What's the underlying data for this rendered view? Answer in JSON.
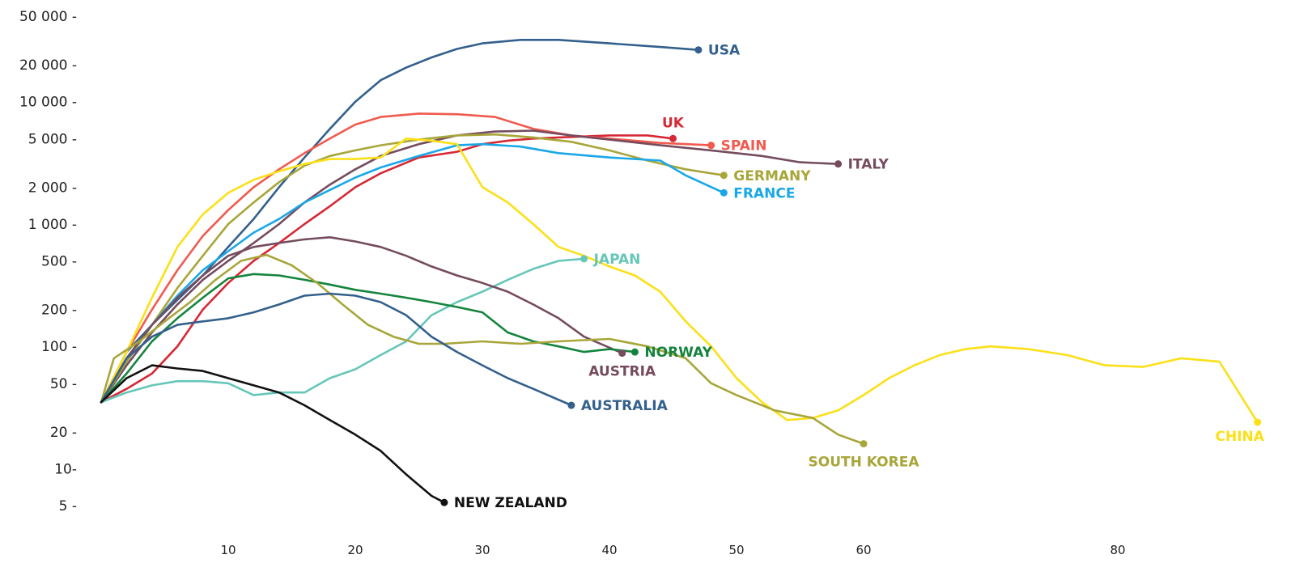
{
  "chart_data": {
    "type": "line",
    "title": "",
    "xlabel": "",
    "ylabel": "",
    "yscale": "log",
    "grid": false,
    "xlim": [
      0,
      91
    ],
    "ylim": [
      3.5,
      60000
    ],
    "yticks": [
      {
        "value": 50000,
        "label": "50 000 -"
      },
      {
        "value": 20000,
        "label": "20 000 -"
      },
      {
        "value": 10000,
        "label": "10 000 -"
      },
      {
        "value": 5000,
        "label": "5 000 -"
      },
      {
        "value": 2000,
        "label": "2 000 -"
      },
      {
        "value": 1000,
        "label": "1 000 -"
      },
      {
        "value": 500,
        "label": "500 -"
      },
      {
        "value": 200,
        "label": "200 -"
      },
      {
        "value": 100,
        "label": "100 -"
      },
      {
        "value": 50,
        "label": "50 -"
      },
      {
        "value": 20,
        "label": "20 -"
      },
      {
        "value": 10,
        "label": "10-"
      },
      {
        "value": 5,
        "label": "5 -"
      }
    ],
    "xticks": [
      {
        "value": 10,
        "label": "10"
      },
      {
        "value": 20,
        "label": "20"
      },
      {
        "value": 30,
        "label": "30"
      },
      {
        "value": 40,
        "label": "40"
      },
      {
        "value": 50,
        "label": "50"
      },
      {
        "value": 60,
        "label": "60"
      },
      {
        "value": 80,
        "label": "80"
      }
    ],
    "series": [
      {
        "name": "USA",
        "color": "#33608c",
        "label_pos": "right",
        "x": [
          0,
          2,
          4,
          6,
          8,
          10,
          12,
          14,
          16,
          18,
          20,
          22,
          24,
          26,
          28,
          30,
          33,
          36,
          40,
          44,
          47
        ],
        "y": [
          35,
          90,
          150,
          240,
          380,
          650,
          1100,
          2000,
          3500,
          6000,
          10000,
          15000,
          19000,
          23000,
          27000,
          30000,
          32000,
          32000,
          30000,
          28000,
          26500
        ]
      },
      {
        "name": "UK",
        "color": "#d62936",
        "label_pos": "above",
        "x": [
          0,
          2,
          4,
          6,
          8,
          10,
          12,
          14,
          16,
          18,
          20,
          22,
          25,
          28,
          30,
          32,
          34,
          36,
          40,
          43,
          45
        ],
        "y": [
          35,
          45,
          60,
          100,
          200,
          330,
          500,
          700,
          1000,
          1400,
          2000,
          2600,
          3500,
          3900,
          4500,
          4800,
          5000,
          5100,
          5300,
          5300,
          5000
        ]
      },
      {
        "name": "SPAIN",
        "color": "#f05a4f",
        "label_pos": "right",
        "x": [
          0,
          2,
          4,
          6,
          8,
          10,
          12,
          14,
          16,
          18,
          20,
          22,
          25,
          28,
          31,
          34,
          37,
          40,
          44,
          48
        ],
        "y": [
          35,
          90,
          200,
          420,
          800,
          1300,
          2000,
          2800,
          3800,
          5000,
          6500,
          7500,
          8000,
          7900,
          7500,
          6000,
          5300,
          5000,
          4600,
          4400
        ]
      },
      {
        "name": "ITALY",
        "color": "#744c5e",
        "label_pos": "right",
        "x": [
          0,
          2,
          4,
          6,
          8,
          10,
          12,
          14,
          16,
          18,
          20,
          22,
          25,
          28,
          31,
          34,
          37,
          40,
          44,
          48,
          52,
          55,
          58
        ],
        "y": [
          35,
          70,
          130,
          220,
          350,
          500,
          700,
          1000,
          1500,
          2100,
          2800,
          3600,
          4500,
          5300,
          5700,
          5800,
          5300,
          4900,
          4400,
          4000,
          3600,
          3200,
          3100
        ]
      },
      {
        "name": "GERMANY",
        "color": "#a8a63a",
        "label_pos": "right",
        "x": [
          0,
          2,
          4,
          6,
          8,
          10,
          12,
          14,
          16,
          18,
          20,
          22,
          25,
          28,
          31,
          34,
          37,
          40,
          43,
          46,
          49
        ],
        "y": [
          35,
          75,
          150,
          300,
          550,
          1000,
          1500,
          2200,
          3000,
          3600,
          4000,
          4400,
          4900,
          5300,
          5400,
          5100,
          4700,
          4000,
          3300,
          2800,
          2500
        ]
      },
      {
        "name": "FRANCE",
        "color": "#1aa7e8",
        "label_pos": "right",
        "x": [
          0,
          2,
          4,
          6,
          8,
          10,
          12,
          14,
          16,
          18,
          20,
          22,
          25,
          28,
          30,
          33,
          36,
          40,
          44,
          46,
          49
        ],
        "y": [
          35,
          80,
          150,
          260,
          420,
          600,
          850,
          1100,
          1500,
          1900,
          2400,
          2900,
          3600,
          4400,
          4500,
          4300,
          3800,
          3500,
          3300,
          2500,
          1800
        ]
      },
      {
        "name": "CHINA",
        "color": "#fbe018",
        "label_pos": "below",
        "x": [
          0,
          2,
          4,
          6,
          8,
          10,
          12,
          14,
          16,
          18,
          20,
          22,
          24,
          26,
          28,
          30,
          32,
          34,
          36,
          38,
          40,
          42,
          44,
          46,
          48,
          50,
          52,
          54,
          56,
          58,
          60,
          62,
          64,
          66,
          68,
          70,
          73,
          76,
          79,
          82,
          85,
          88,
          91
        ],
        "y": [
          35,
          90,
          250,
          650,
          1200,
          1800,
          2300,
          2700,
          3100,
          3400,
          3400,
          3500,
          5000,
          4800,
          4500,
          2000,
          1500,
          1000,
          650,
          550,
          450,
          380,
          280,
          160,
          100,
          55,
          35,
          25,
          26,
          30,
          40,
          55,
          70,
          85,
          95,
          100,
          95,
          85,
          70,
          68,
          80,
          75,
          24
        ]
      },
      {
        "name": "JAPAN",
        "color": "#66c6b9",
        "label_pos": "right",
        "x": [
          0,
          2,
          4,
          6,
          8,
          10,
          12,
          14,
          16,
          18,
          20,
          22,
          24,
          26,
          28,
          30,
          32,
          34,
          36,
          38
        ],
        "y": [
          35,
          42,
          48,
          52,
          52,
          50,
          40,
          42,
          42,
          55,
          65,
          85,
          110,
          180,
          230,
          280,
          350,
          430,
          500,
          520
        ]
      },
      {
        "name": "AUSTRIA",
        "color": "#744c5e",
        "label_pos": "below",
        "x": [
          0,
          2,
          4,
          6,
          8,
          10,
          12,
          14,
          16,
          18,
          20,
          22,
          24,
          26,
          28,
          30,
          32,
          34,
          36,
          38,
          41
        ],
        "y": [
          35,
          80,
          150,
          250,
          380,
          550,
          650,
          700,
          750,
          780,
          720,
          650,
          550,
          450,
          380,
          330,
          280,
          220,
          170,
          120,
          88
        ]
      },
      {
        "name": "NORWAY",
        "color": "#14843d",
        "label_pos": "right",
        "x": [
          0,
          2,
          4,
          6,
          8,
          10,
          12,
          14,
          16,
          18,
          20,
          22,
          24,
          26,
          28,
          30,
          32,
          34,
          36,
          38,
          40,
          42
        ],
        "y": [
          35,
          60,
          110,
          170,
          250,
          360,
          390,
          380,
          350,
          320,
          290,
          270,
          250,
          230,
          210,
          190,
          130,
          110,
          100,
          90,
          95,
          90
        ]
      },
      {
        "name": "SOUTH KOREA",
        "color": "#a8a63a",
        "label_pos": "below",
        "x": [
          0,
          1,
          3,
          5,
          7,
          9,
          11,
          13,
          15,
          17,
          19,
          21,
          23,
          25,
          27,
          30,
          33,
          36,
          40,
          43,
          46,
          48,
          50,
          53,
          56,
          58,
          60
        ],
        "y": [
          35,
          80,
          110,
          160,
          230,
          350,
          500,
          560,
          460,
          330,
          220,
          150,
          120,
          105,
          105,
          110,
          105,
          110,
          115,
          100,
          80,
          50,
          40,
          30,
          26,
          19,
          16
        ]
      },
      {
        "name": "AUSTRALIA",
        "color": "#33608c",
        "label_pos": "right",
        "x": [
          0,
          2,
          4,
          6,
          8,
          10,
          12,
          14,
          16,
          18,
          20,
          22,
          24,
          26,
          28,
          30,
          32,
          34,
          37
        ],
        "y": [
          35,
          80,
          120,
          150,
          160,
          170,
          190,
          220,
          260,
          270,
          260,
          230,
          180,
          120,
          90,
          70,
          55,
          45,
          33
        ]
      },
      {
        "name": "NEW ZEALAND",
        "color": "#111111",
        "label_pos": "right",
        "x": [
          0,
          2,
          4,
          6,
          8,
          10,
          12,
          14,
          16,
          18,
          20,
          22,
          24,
          26,
          27
        ],
        "y": [
          35,
          55,
          70,
          66,
          63,
          55,
          48,
          42,
          33,
          25,
          19,
          14,
          9,
          6,
          5.3
        ]
      }
    ]
  }
}
